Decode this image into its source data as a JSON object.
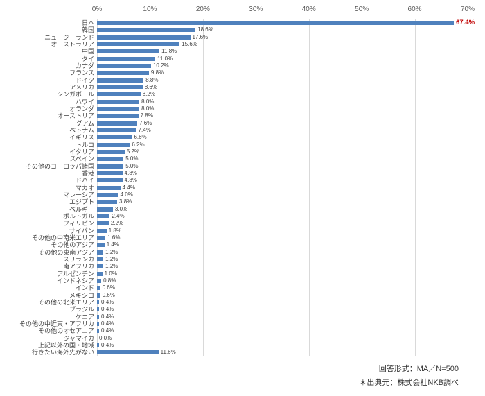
{
  "chart_data": {
    "type": "bar",
    "orientation": "horizontal",
    "title": "",
    "xlabel": "",
    "ylabel": "",
    "xlim": [
      0,
      70
    ],
    "x_ticks": [
      "0%",
      "10%",
      "20%",
      "30%",
      "40%",
      "50%",
      "60%",
      "70%"
    ],
    "grid": true,
    "legend": "none",
    "bar_color": "#4F81BD",
    "highlight_color": "#C00000",
    "highlight_index": 0,
    "categories": [
      "日本",
      "韓国",
      "ニュージーランド",
      "オーストラリア",
      "中国",
      "タイ",
      "カナダ",
      "フランス",
      "ドイツ",
      "アメリカ",
      "シンガポール",
      "ハワイ",
      "オランダ",
      "オーストリア",
      "グアム",
      "ベトナム",
      "イギリス",
      "トルコ",
      "イタリア",
      "スペイン",
      "その他のヨーロッパ諸国",
      "香港",
      "ドバイ",
      "マカオ",
      "マレーシア",
      "エジプト",
      "ベルギー",
      "ポルトガル",
      "フィリピン",
      "サイパン",
      "その他の中南米エリア",
      "その他のアジア",
      "その他の東南アジア",
      "スリランカ",
      "南アフリカ",
      "アルゼンチン",
      "インドネシア",
      "インド",
      "メキシコ",
      "その他の北米エリア",
      "ブラジル",
      "ケニア",
      "その他の中近東・アフリカ",
      "その他のオセアニア",
      "ジャマイカ",
      "上記以外の国・地域",
      "行きたい海外先がない"
    ],
    "values": [
      67.4,
      18.6,
      17.6,
      15.6,
      11.8,
      11.0,
      10.2,
      9.8,
      8.8,
      8.6,
      8.2,
      8.0,
      8.0,
      7.8,
      7.6,
      7.4,
      6.6,
      6.2,
      5.2,
      5.0,
      5.0,
      4.8,
      4.8,
      4.4,
      4.0,
      3.8,
      3.0,
      2.4,
      2.2,
      1.8,
      1.6,
      1.4,
      1.2,
      1.2,
      1.2,
      1.0,
      0.8,
      0.6,
      0.6,
      0.4,
      0.4,
      0.4,
      0.4,
      0.4,
      0.0,
      0.4,
      11.6
    ]
  },
  "footer": {
    "line1": "回答形式：MA／N=500",
    "line2": "＊出典元：株式会社NKB調べ"
  }
}
